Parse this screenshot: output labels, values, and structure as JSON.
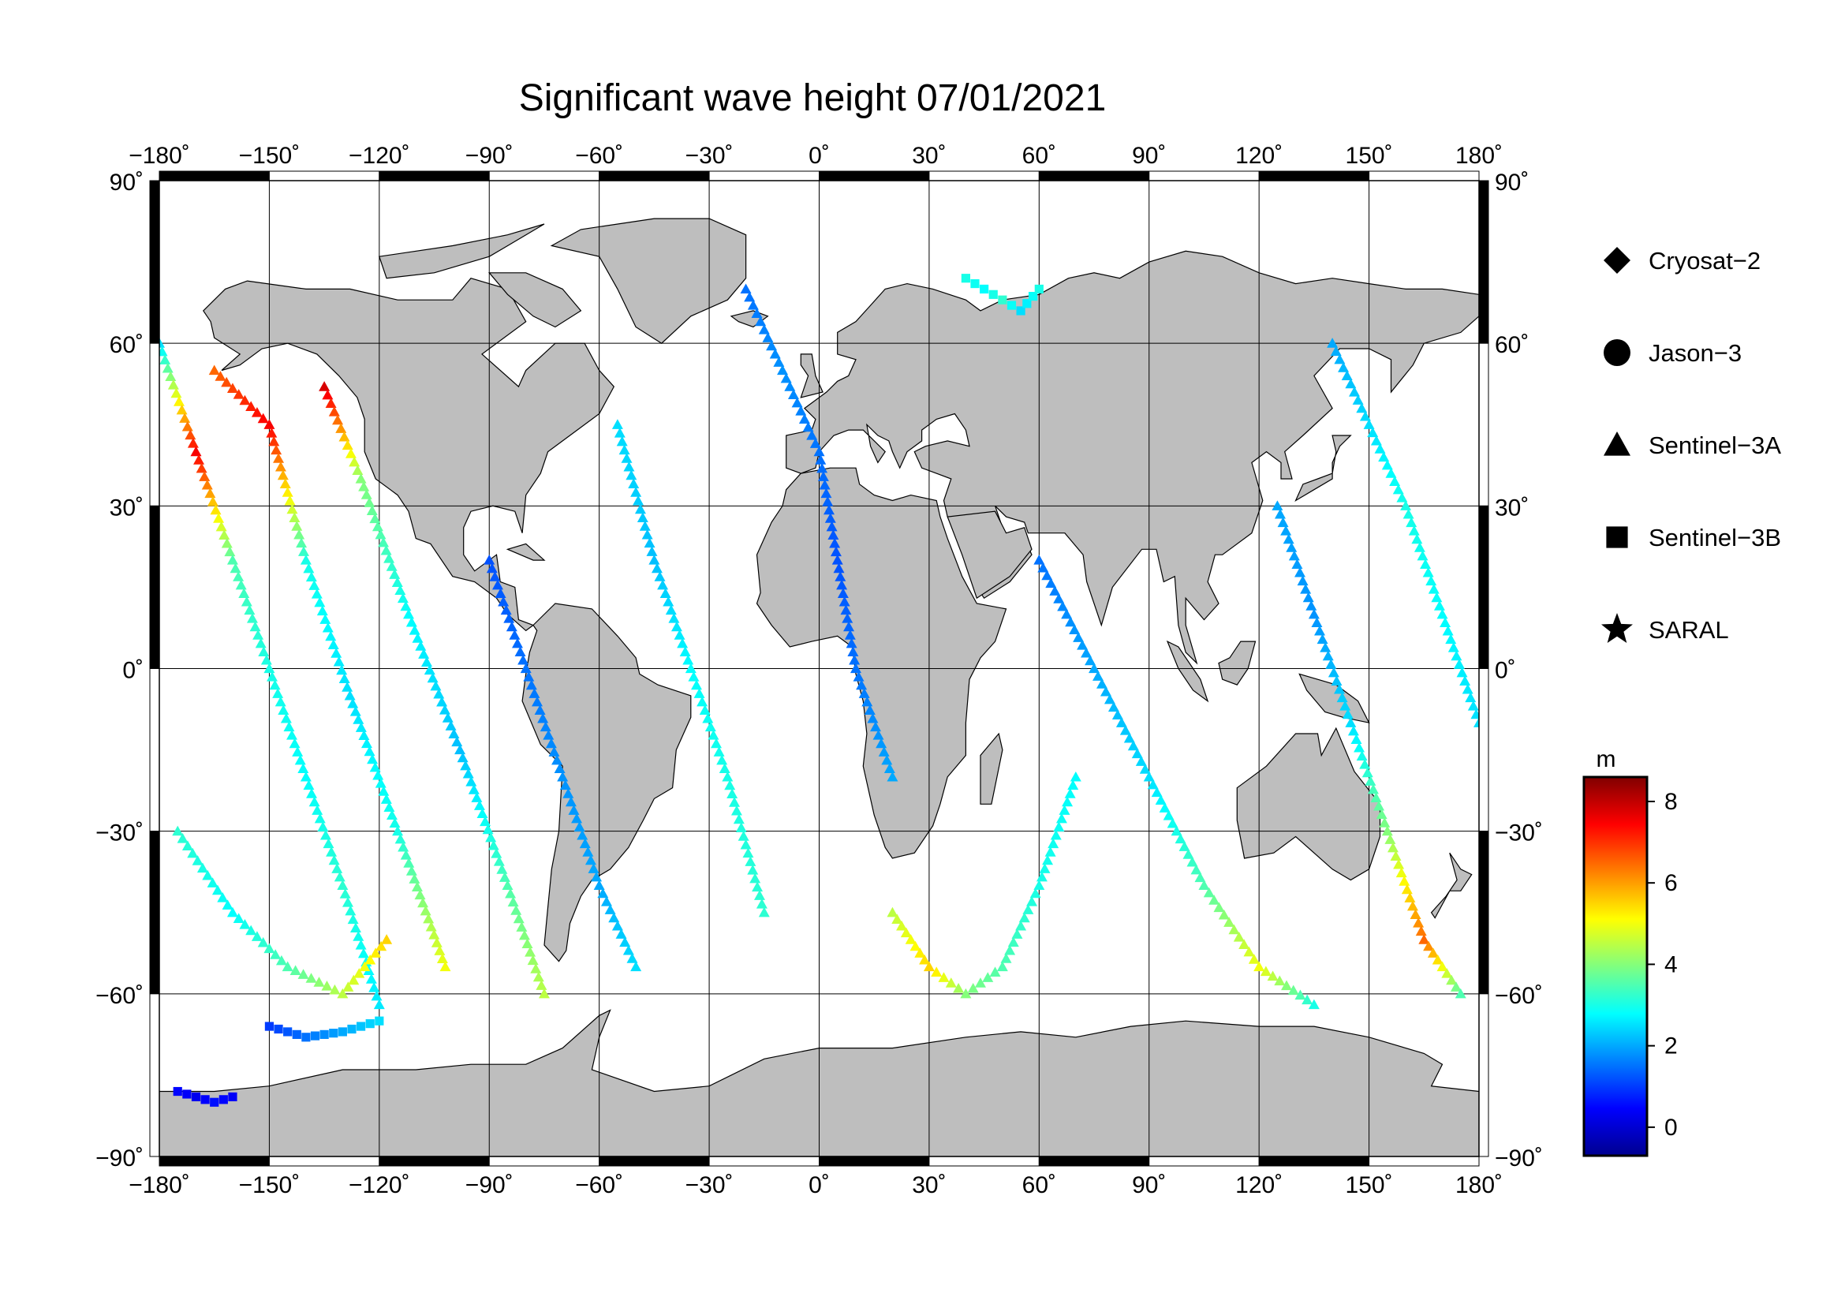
{
  "title": "Significant wave height 07/01/2021",
  "map": {
    "projection": "equirectangular",
    "lon_range": [
      -180,
      180
    ],
    "lat_range": [
      -90,
      90
    ],
    "grid_step_lon": 30,
    "grid_step_lat": 30,
    "grid": true,
    "land_color": "#bebebe",
    "ocean_color": "#ffffff",
    "lon_tick_labels": [
      "−180˚",
      "−150˚",
      "−120˚",
      "−90˚",
      "−60˚",
      "−30˚",
      "0˚",
      "30˚",
      "60˚",
      "90˚",
      "120˚",
      "150˚",
      "180˚"
    ],
    "lat_tick_labels": [
      "−90˚",
      "−60˚",
      "−30˚",
      "0˚",
      "30˚",
      "60˚",
      "90˚"
    ]
  },
  "legend": {
    "placement": "right",
    "items": [
      {
        "label": "Cryosat−2",
        "symbol": "diamond-icon"
      },
      {
        "label": "Jason−3",
        "symbol": "circle-icon"
      },
      {
        "label": "Sentinel−3A",
        "symbol": "triangle-icon"
      },
      {
        "label": "Sentinel−3B",
        "symbol": "square-icon"
      },
      {
        "label": "SARAL",
        "symbol": "star-icon"
      }
    ]
  },
  "colorbar": {
    "unit": "m",
    "min": -0.7,
    "max": 8.6,
    "ticks": [
      0,
      2,
      4,
      6,
      8
    ],
    "tick_labels": [
      "0",
      "2",
      "4",
      "6",
      "8"
    ],
    "colormap": [
      "#00008f",
      "#0000ff",
      "#00ffff",
      "#ffff00",
      "#ff0000",
      "#800000"
    ]
  },
  "chart_data": {
    "type": "scatter",
    "title": "Significant wave height 07/01/2021",
    "xlabel": "",
    "ylabel": "",
    "xlim": [
      -180,
      180
    ],
    "ylim": [
      -90,
      90
    ],
    "value_unit": "m",
    "series": [
      {
        "name": "Sentinel−3A",
        "marker": "triangle",
        "tracks": [
          {
            "lon": [
              -180,
              -170,
              -160,
              -150,
              -140,
              -130,
              -120
            ],
            "lat": [
              60,
              40,
              20,
              0,
              -20,
              -40,
              -62
            ],
            "swh": [
              2.5,
              7.5,
              3.5,
              3.0,
              2.8,
              3.2,
              2.6
            ]
          },
          {
            "lon": [
              -165,
              -150,
              -140,
              -128,
              -115,
              -102
            ],
            "lat": [
              55,
              45,
              20,
              -5,
              -30,
              -55
            ],
            "swh": [
              6.5,
              7.5,
              3.0,
              2.5,
              3.0,
              5.0
            ]
          },
          {
            "lon": [
              -135,
              -125,
              -112,
              -98,
              -85,
              -75
            ],
            "lat": [
              52,
              35,
              10,
              -15,
              -40,
              -60
            ],
            "swh": [
              7.8,
              4.0,
              2.8,
              2.2,
              3.5,
              4.5
            ]
          },
          {
            "lon": [
              -175,
              -160,
              -145,
              -130,
              -118
            ],
            "lat": [
              -30,
              -45,
              -55,
              -60,
              -50
            ],
            "swh": [
              3.2,
              2.8,
              3.5,
              4.5,
              5.5
            ]
          },
          {
            "lon": [
              -90,
              -80,
              -70,
              -60,
              -50
            ],
            "lat": [
              20,
              0,
              -20,
              -40,
              -55
            ],
            "swh": [
              1.2,
              1.5,
              1.8,
              2.0,
              2.5
            ]
          },
          {
            "lon": [
              -55,
              -45,
              -35,
              -25,
              -15
            ],
            "lat": [
              45,
              20,
              0,
              -20,
              -45
            ],
            "swh": [
              2.5,
              2.2,
              2.8,
              3.0,
              3.2
            ]
          },
          {
            "lon": [
              -20,
              -10,
              0,
              5,
              10,
              20
            ],
            "lat": [
              70,
              55,
              40,
              20,
              0,
              -20
            ],
            "swh": [
              1.5,
              1.8,
              1.5,
              1.2,
              1.5,
              2.0
            ]
          },
          {
            "lon": [
              20,
              30,
              40,
              50,
              60,
              70
            ],
            "lat": [
              -45,
              -55,
              -60,
              -55,
              -40,
              -20
            ],
            "swh": [
              4.5,
              5.5,
              4.0,
              3.5,
              3.0,
              2.8
            ]
          },
          {
            "lon": [
              60,
              75,
              90,
              105,
              120,
              135
            ],
            "lat": [
              20,
              0,
              -20,
              -40,
              -55,
              -62
            ],
            "swh": [
              1.5,
              2.0,
              2.5,
              3.5,
              5.0,
              3.0
            ]
          },
          {
            "lon": [
              125,
              135,
              145,
              155,
              165,
              175
            ],
            "lat": [
              30,
              10,
              -10,
              -30,
              -50,
              -60
            ],
            "swh": [
              2.0,
              1.8,
              2.5,
              4.0,
              6.5,
              3.5
            ]
          },
          {
            "lon": [
              140,
              150,
              160,
              170,
              180
            ],
            "lat": [
              60,
              45,
              30,
              10,
              -10
            ],
            "swh": [
              2.0,
              2.5,
              3.0,
              2.8,
              2.5
            ]
          }
        ]
      },
      {
        "name": "Sentinel−3B",
        "marker": "square",
        "tracks": [
          {
            "lon": [
              40,
              45,
              50,
              55,
              60
            ],
            "lat": [
              72,
              70,
              68,
              66,
              70
            ],
            "swh": [
              3.0,
              2.8,
              3.2,
              2.5,
              3.0
            ]
          },
          {
            "lon": [
              -175,
              -170,
              -165,
              -160
            ],
            "lat": [
              -78,
              -79,
              -80,
              -79
            ],
            "swh": [
              0.5,
              0.3,
              0.6,
              0.4
            ]
          },
          {
            "lon": [
              -150,
              -140,
              -130,
              -120
            ],
            "lat": [
              -66,
              -68,
              -67,
              -65
            ],
            "swh": [
              1.0,
              1.5,
              2.0,
              2.5
            ]
          }
        ]
      }
    ]
  }
}
